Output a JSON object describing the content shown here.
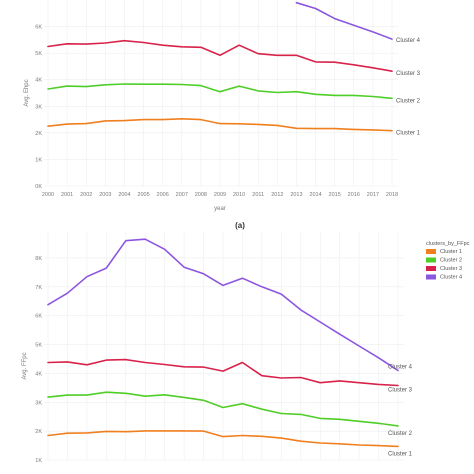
{
  "chart_data": [
    {
      "type": "line",
      "panel_label": "(a)",
      "xlabel": "year",
      "ylabel": "Avg. Ehpc",
      "x": [
        2000,
        2001,
        2002,
        2003,
        2004,
        2005,
        2006,
        2007,
        2008,
        2009,
        2010,
        2011,
        2012,
        2013,
        2014,
        2015,
        2016,
        2017,
        2018
      ],
      "ylim": [
        0,
        7000
      ],
      "ytick_values": [
        0,
        1000,
        2000,
        3000,
        4000,
        5000,
        6000
      ],
      "ytick_labels": [
        "0K",
        "1K",
        "2K",
        "3K",
        "4K",
        "5K",
        "6K"
      ],
      "grid": true,
      "colors": {
        "Cluster 1": "#f07f1f",
        "Cluster 2": "#4fce28",
        "Cluster 3": "#d8224a",
        "Cluster 4": "#8c56e0"
      },
      "series": [
        {
          "name": "Cluster 1",
          "end_label": "Cluster 1",
          "values": [
            2250,
            2330,
            2350,
            2450,
            2460,
            2500,
            2500,
            2530,
            2500,
            2350,
            2340,
            2320,
            2280,
            2170,
            2160,
            2160,
            2130,
            2110,
            2080
          ]
        },
        {
          "name": "Cluster 2",
          "end_label": "Cluster 2",
          "values": [
            3650,
            3760,
            3740,
            3810,
            3840,
            3830,
            3830,
            3820,
            3780,
            3550,
            3760,
            3580,
            3520,
            3550,
            3450,
            3410,
            3410,
            3370,
            3300
          ]
        },
        {
          "name": "Cluster 3",
          "end_label": "Cluster 3",
          "values": [
            5250,
            5350,
            5340,
            5380,
            5470,
            5400,
            5300,
            5240,
            5220,
            4920,
            5300,
            4980,
            4920,
            4920,
            4670,
            4660,
            4560,
            4450,
            4320
          ]
        },
        {
          "name": "Cluster 4",
          "end_label": "Cluster 4",
          "values": [
            null,
            null,
            null,
            null,
            null,
            null,
            null,
            null,
            null,
            null,
            null,
            null,
            null,
            6900,
            6680,
            6300,
            6050,
            5800,
            5530
          ]
        }
      ]
    },
    {
      "type": "line",
      "ylabel": "Avg. FFpc",
      "x": [
        2000,
        2001,
        2002,
        2003,
        2004,
        2005,
        2006,
        2007,
        2008,
        2009,
        2010,
        2011,
        2012,
        2013,
        2014,
        2015,
        2016,
        2017,
        2018
      ],
      "ylim": [
        1000,
        8900
      ],
      "ytick_values": [
        1000,
        2000,
        3000,
        4000,
        5000,
        6000,
        7000,
        8000
      ],
      "ytick_labels": [
        "1K",
        "2K",
        "3K",
        "4K",
        "5K",
        "6K",
        "7K",
        "8K"
      ],
      "grid": true,
      "legend": {
        "title": "clusters_by_FFpc",
        "placement": "right",
        "entries": [
          "Cluster 1",
          "Cluster 2",
          "Cluster 3",
          "Cluster 4"
        ]
      },
      "colors": {
        "Cluster 1": "#f07f1f",
        "Cluster 2": "#4fce28",
        "Cluster 3": "#d8224a",
        "Cluster 4": "#8c56e0"
      },
      "series": [
        {
          "name": "Cluster 1",
          "end_label": "Cluster 1",
          "values": [
            1850,
            1930,
            1940,
            1990,
            1980,
            2010,
            2010,
            2010,
            2000,
            1810,
            1850,
            1820,
            1760,
            1650,
            1590,
            1560,
            1520,
            1500,
            1470
          ]
        },
        {
          "name": "Cluster 2",
          "end_label": "Cluster 2",
          "values": [
            3180,
            3250,
            3250,
            3350,
            3310,
            3210,
            3260,
            3170,
            3070,
            2820,
            2950,
            2760,
            2610,
            2580,
            2440,
            2410,
            2340,
            2270,
            2180
          ]
        },
        {
          "name": "Cluster 3",
          "end_label": "Cluster 3",
          "values": [
            4380,
            4400,
            4300,
            4460,
            4480,
            4380,
            4310,
            4230,
            4220,
            4080,
            4380,
            3920,
            3840,
            3860,
            3680,
            3740,
            3680,
            3620,
            3580
          ]
        },
        {
          "name": "Cluster 4",
          "end_label": "Cluster 4",
          "values": [
            6380,
            6780,
            7350,
            7650,
            8600,
            8650,
            8300,
            7680,
            7450,
            7050,
            7300,
            7000,
            6750,
            6200,
            5780,
            5360,
            4950,
            4540,
            4100
          ]
        }
      ]
    }
  ]
}
